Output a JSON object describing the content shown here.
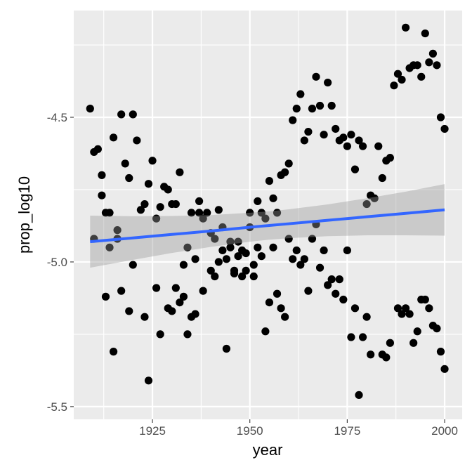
{
  "chart_data": {
    "type": "scatter",
    "title": "",
    "xlabel": "year",
    "ylabel": "prop_log10",
    "xlim": [
      1904.8,
      2004.5
    ],
    "ylim": [
      -5.544,
      -4.131
    ],
    "grid": true,
    "x_ticks": [
      1925,
      1950,
      1975,
      2000
    ],
    "x_tick_labels": [
      "1925",
      "1950",
      "1975",
      "2000"
    ],
    "y_ticks": [
      -4.5,
      -5.0,
      -5.5
    ],
    "y_tick_labels": [
      "-4.5",
      "-5.0",
      "-5.5"
    ],
    "colors": {
      "panel": "#EBEBEB",
      "grid": "#FFFFFF",
      "point": "#000000",
      "smooth_line": "#3366FF",
      "ribbon": "#999999"
    },
    "points": [
      [
        1909,
        -4.47
      ],
      [
        1917,
        -4.49
      ],
      [
        1920,
        -4.49
      ],
      [
        1915,
        -4.57
      ],
      [
        1921,
        -4.58
      ],
      [
        1911,
        -4.61
      ],
      [
        1910,
        -4.62
      ],
      [
        1918,
        -4.66
      ],
      [
        1925,
        -4.65
      ],
      [
        1932,
        -4.69
      ],
      [
        1912,
        -4.7
      ],
      [
        1919,
        -4.71
      ],
      [
        1924,
        -4.73
      ],
      [
        1928,
        -4.74
      ],
      [
        1929,
        -4.75
      ],
      [
        1912,
        -4.77
      ],
      [
        1923,
        -4.8
      ],
      [
        1922,
        -4.82
      ],
      [
        1927,
        -4.81
      ],
      [
        1930,
        -4.8
      ],
      [
        1931,
        -4.8
      ],
      [
        1937,
        -4.79
      ],
      [
        1935,
        -4.83
      ],
      [
        1937,
        -4.83
      ],
      [
        1913,
        -4.83
      ],
      [
        1914,
        -4.83
      ],
      [
        1926,
        -4.85
      ],
      [
        1938,
        -4.85
      ],
      [
        1916,
        -4.89
      ],
      [
        1910,
        -4.92
      ],
      [
        1916,
        -4.92
      ],
      [
        1914,
        -4.95
      ],
      [
        1934,
        -4.95
      ],
      [
        1936,
        -4.99
      ],
      [
        1933,
        -5.01
      ],
      [
        1920,
        -5.01
      ],
      [
        1926,
        -5.09
      ],
      [
        1931,
        -5.09
      ],
      [
        1938,
        -5.1
      ],
      [
        1917,
        -5.1
      ],
      [
        1913,
        -5.12
      ],
      [
        1933,
        -5.12
      ],
      [
        1932,
        -5.14
      ],
      [
        1929,
        -5.16
      ],
      [
        1930,
        -5.17
      ],
      [
        1919,
        -5.17
      ],
      [
        1923,
        -5.19
      ],
      [
        1935,
        -5.19
      ],
      [
        1936,
        -5.18
      ],
      [
        1927,
        -5.25
      ],
      [
        1934,
        -5.25
      ],
      [
        1915,
        -5.31
      ],
      [
        1924,
        -5.41
      ],
      [
        1939,
        -4.83
      ],
      [
        1942,
        -4.82
      ],
      [
        1950,
        -4.83
      ],
      [
        1953,
        -4.83
      ],
      [
        1957,
        -4.83
      ],
      [
        1940,
        -4.9
      ],
      [
        1954,
        -4.85
      ],
      [
        1943,
        -4.88
      ],
      [
        1950,
        -4.88
      ],
      [
        1967,
        -4.87
      ],
      [
        1941,
        -4.92
      ],
      [
        1960,
        -4.92
      ],
      [
        1966,
        -4.92
      ],
      [
        1945,
        -4.93
      ],
      [
        1947,
        -4.93
      ],
      [
        1945,
        -4.95
      ],
      [
        1943,
        -4.96
      ],
      [
        1952,
        -4.95
      ],
      [
        1956,
        -4.95
      ],
      [
        1962,
        -4.96
      ],
      [
        1969,
        -4.96
      ],
      [
        1948,
        -4.96
      ],
      [
        1949,
        -4.97
      ],
      [
        1947,
        -4.98
      ],
      [
        1944,
        -4.99
      ],
      [
        1953,
        -4.98
      ],
      [
        1961,
        -4.99
      ],
      [
        1964,
        -4.99
      ],
      [
        1942,
        -5.0
      ],
      [
        1951,
        -5.01
      ],
      [
        1963,
        -5.01
      ],
      [
        1968,
        -5.02
      ],
      [
        1940,
        -5.03
      ],
      [
        1946,
        -5.03
      ],
      [
        1949,
        -5.03
      ],
      [
        1941,
        -5.05
      ],
      [
        1946,
        -5.04
      ],
      [
        1948,
        -5.05
      ],
      [
        1951,
        -5.05
      ],
      [
        1970,
        -5.08
      ],
      [
        1957,
        -5.11
      ],
      [
        1965,
        -5.1
      ],
      [
        1955,
        -5.14
      ],
      [
        1958,
        -5.16
      ],
      [
        1959,
        -5.19
      ],
      [
        1954,
        -5.24
      ],
      [
        1944,
        -5.3
      ],
      [
        1960,
        -4.66
      ],
      [
        1959,
        -4.69
      ],
      [
        1958,
        -4.7
      ],
      [
        1955,
        -4.72
      ],
      [
        1952,
        -4.79
      ],
      [
        1956,
        -4.78
      ],
      [
        1990,
        -4.19
      ],
      [
        1995,
        -4.21
      ],
      [
        1997,
        -4.28
      ],
      [
        1996,
        -4.31
      ],
      [
        1998,
        -4.32
      ],
      [
        1993,
        -4.32
      ],
      [
        1991,
        -4.33
      ],
      [
        1992,
        -4.32
      ],
      [
        1988,
        -4.35
      ],
      [
        1994,
        -4.36
      ],
      [
        1989,
        -4.37
      ],
      [
        1987,
        -4.39
      ],
      [
        1999,
        -4.5
      ],
      [
        2000,
        -4.54
      ],
      [
        1967,
        -4.36
      ],
      [
        1970,
        -4.38
      ],
      [
        1963,
        -4.42
      ],
      [
        1962,
        -4.47
      ],
      [
        1966,
        -4.47
      ],
      [
        1968,
        -4.46
      ],
      [
        1971,
        -4.46
      ],
      [
        1961,
        -4.51
      ],
      [
        1965,
        -4.55
      ],
      [
        1964,
        -4.58
      ],
      [
        1969,
        -4.56
      ],
      [
        1972,
        -4.54
      ],
      [
        1973,
        -4.58
      ],
      [
        1974,
        -4.57
      ],
      [
        1976,
        -4.56
      ],
      [
        1975,
        -4.6
      ],
      [
        1978,
        -4.58
      ],
      [
        1979,
        -4.6
      ],
      [
        1983,
        -4.6
      ],
      [
        1985,
        -4.65
      ],
      [
        1986,
        -4.64
      ],
      [
        1977,
        -4.68
      ],
      [
        1984,
        -4.71
      ],
      [
        1981,
        -4.77
      ],
      [
        1982,
        -4.78
      ],
      [
        1980,
        -4.8
      ],
      [
        1975,
        -4.96
      ],
      [
        1971,
        -5.06
      ],
      [
        1973,
        -5.06
      ],
      [
        1972,
        -5.11
      ],
      [
        1974,
        -5.13
      ],
      [
        1977,
        -5.16
      ],
      [
        1980,
        -5.19
      ],
      [
        1976,
        -5.26
      ],
      [
        1979,
        -5.26
      ],
      [
        1981,
        -5.32
      ],
      [
        1984,
        -5.32
      ],
      [
        1985,
        -5.33
      ],
      [
        1986,
        -5.28
      ],
      [
        1978,
        -5.46
      ],
      [
        1988,
        -5.16
      ],
      [
        1990,
        -5.16
      ],
      [
        1989,
        -5.18
      ],
      [
        1991,
        -5.18
      ],
      [
        1994,
        -5.13
      ],
      [
        1995,
        -5.13
      ],
      [
        1996,
        -5.16
      ],
      [
        1993,
        -5.24
      ],
      [
        1992,
        -5.28
      ],
      [
        1997,
        -5.22
      ],
      [
        1998,
        -5.23
      ],
      [
        1999,
        -5.31
      ],
      [
        2000,
        -5.37
      ]
    ],
    "smooth": {
      "method": "lm",
      "x": [
        1909,
        1920,
        1930,
        1940,
        1950,
        1955,
        1960,
        1970,
        1980,
        1990,
        2000
      ],
      "y": [
        -4.93,
        -4.917,
        -4.905,
        -4.893,
        -4.88,
        -4.874,
        -4.868,
        -4.856,
        -4.844,
        -4.832,
        -4.82
      ],
      "lower": [
        -5.02,
        -4.993,
        -4.969,
        -4.948,
        -4.93,
        -4.923,
        -4.918,
        -4.911,
        -4.908,
        -4.908,
        -4.909
      ],
      "upper": [
        -4.84,
        -4.842,
        -4.841,
        -4.838,
        -4.83,
        -4.825,
        -4.818,
        -4.801,
        -4.78,
        -4.757,
        -4.731
      ]
    }
  }
}
